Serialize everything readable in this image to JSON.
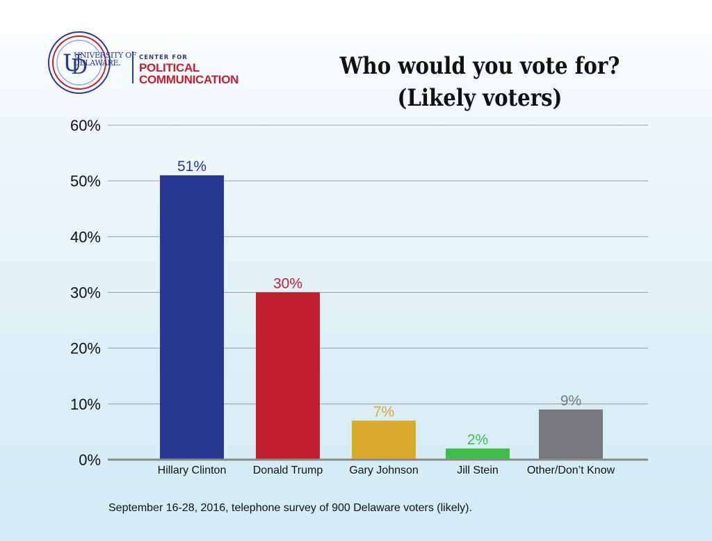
{
  "logo": {
    "university_line1": "UNIVERSITY OF",
    "university_line2": "DELAWARE.",
    "center_for": "CENTER FOR",
    "political": "POLITICAL",
    "communication": "COMMUNICATION"
  },
  "chart_data": {
    "type": "bar",
    "title": [
      "Who would you vote for?",
      "(Likely voters)"
    ],
    "categories": [
      "Hillary Clinton",
      "Donald Trump",
      "Gary Johnson",
      "Jill Stein",
      "Other/Don’t Know"
    ],
    "values": [
      51,
      30,
      7,
      2,
      9
    ],
    "data_labels": [
      "51%",
      "30%",
      "7%",
      "2%",
      "9%"
    ],
    "colors": [
      "#28378f",
      "#bf1f2f",
      "#d9aa2c",
      "#3fbf4a",
      "#77787b"
    ],
    "label_colors": [
      "#28378f",
      "#bf1f2f",
      "#d9aa2c",
      "#3fbf4a",
      "#77787b"
    ],
    "ylim": [
      0,
      60
    ],
    "yticks": [
      "0%",
      "10%",
      "20%",
      "30%",
      "40%",
      "50%",
      "60%"
    ],
    "grid": true,
    "xlabel": "",
    "ylabel": ""
  },
  "footnote": "September 16-28, 2016, telephone survey of 900 Delaware voters (likely)."
}
